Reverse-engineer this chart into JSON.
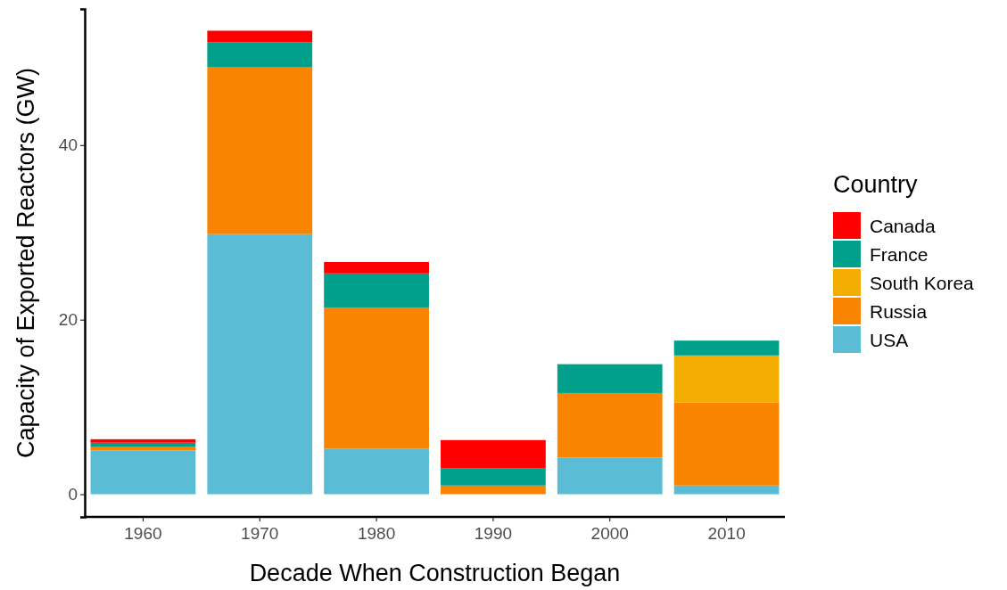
{
  "chart_data": {
    "type": "bar",
    "stacked": true,
    "xlabel": "Decade When Construction Began",
    "ylabel": "Capacity of Exported Reactors (GW)",
    "legend_title": "Country",
    "legend": "right",
    "categories": [
      "1960",
      "1970",
      "1980",
      "1990",
      "2000",
      "2010"
    ],
    "ylim": [
      -2.6,
      55.6
    ],
    "yticks": [
      0,
      20,
      40
    ],
    "series": [
      {
        "name": "USA",
        "color": "#5bbcd6",
        "values": [
          5.0,
          29.8,
          5.2,
          0,
          4.2,
          1.0
        ]
      },
      {
        "name": "Russia",
        "color": "#f98400",
        "values": [
          0.4,
          19.1,
          16.2,
          1.0,
          7.4,
          9.5
        ]
      },
      {
        "name": "South Korea",
        "color": "#f2ad00",
        "values": [
          0,
          0,
          0,
          0,
          0,
          5.4
        ]
      },
      {
        "name": "France",
        "color": "#00a08a",
        "values": [
          0.5,
          2.9,
          3.9,
          2.0,
          3.3,
          1.7
        ]
      },
      {
        "name": "Canada",
        "color": "#ff0000",
        "values": [
          0.4,
          1.3,
          1.3,
          3.2,
          0,
          0
        ]
      }
    ]
  }
}
